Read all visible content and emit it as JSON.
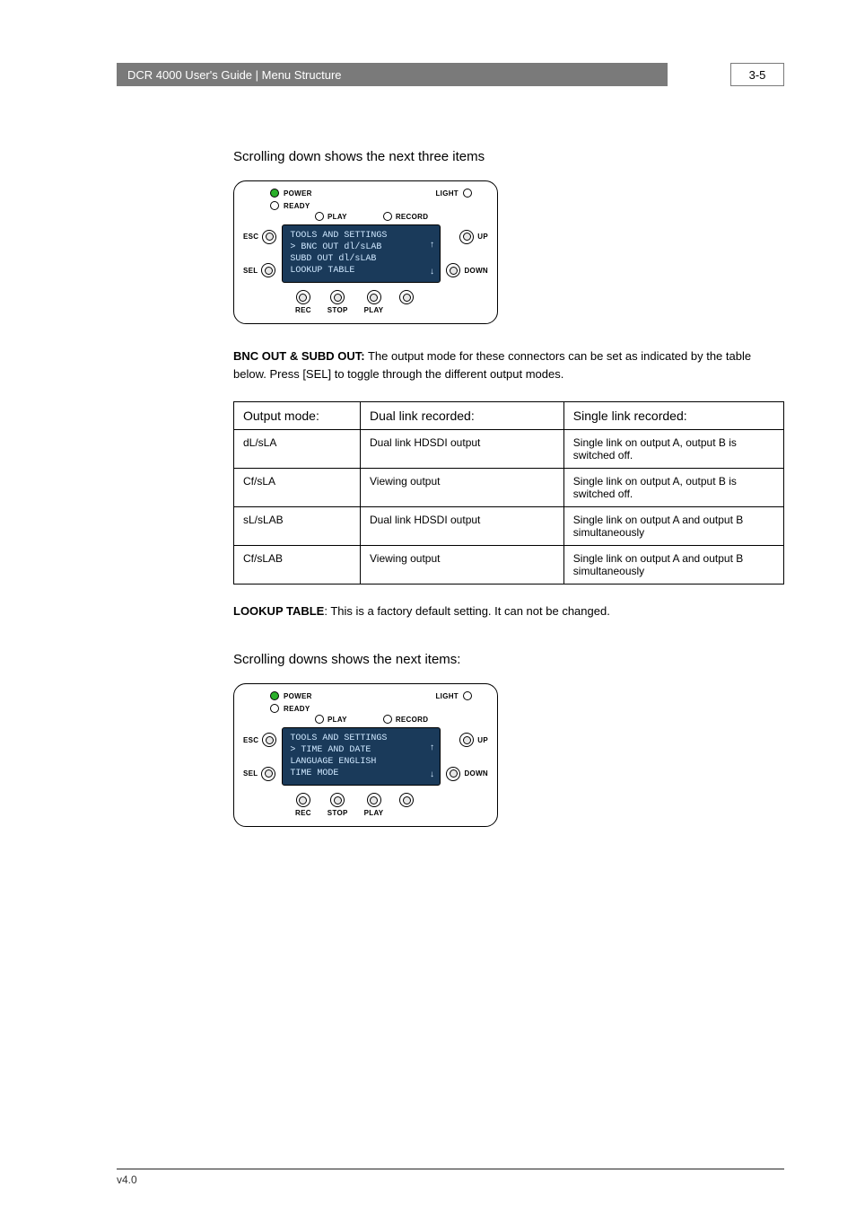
{
  "header": {
    "title": "DCR 4000 User's Guide | Menu Structure",
    "page": "3-5"
  },
  "section1": {
    "heading": "Scrolling down shows the next three items"
  },
  "panel_common": {
    "power": "POWER",
    "light": "LIGHT",
    "ready": "READY",
    "play": "PLAY",
    "record": "RECORD",
    "esc": "ESC",
    "sel": "SEL",
    "up": "UP",
    "down": "DOWN",
    "rec": "REC",
    "stop": "STOP",
    "play_btn": "PLAY",
    "colors": {
      "lcd_bg": "#1a3a5a",
      "lcd_text": "#cfe8ff",
      "led_green": "#2bb02b"
    }
  },
  "lcd1": {
    "l1": "TOOLS AND SETTINGS",
    "l2": "> BNC OUT   dl/sLAB",
    "l3": "  SUBD OUT  dl/sLAB",
    "l4": "  LOOKUP TABLE"
  },
  "bnc_para": {
    "lead": "BNC OUT & SUBD OUT:",
    "rest": " The output mode for these connectors can be set as indicated by the table below. Press [SEL] to toggle through the different output modes."
  },
  "table": {
    "head": {
      "c1": "Output mode:",
      "c2": "Dual link recorded:",
      "c3": "Single link recorded:"
    },
    "rows": [
      {
        "c1": "dL/sLA",
        "c2": "Dual link HDSDI output",
        "c3": "Single link on output A, output B is switched off."
      },
      {
        "c1": "Cf/sLA",
        "c2": "Viewing output",
        "c3": "Single link on output A, output B is switched off."
      },
      {
        "c1": "sL/sLAB",
        "c2": "Dual link HDSDI output",
        "c3": "Single link on output A and output B simultaneously"
      },
      {
        "c1": "Cf/sLAB",
        "c2": "Viewing output",
        "c3": "Single link on output A and output B simultaneously"
      }
    ]
  },
  "lookup": {
    "lead": "LOOKUP TABLE",
    "rest": ": This is a factory default setting. It can not be changed."
  },
  "section2": {
    "heading": "Scrolling downs shows the next items:"
  },
  "lcd2": {
    "l1": "TOOLS AND SETTINGS",
    "l2": "> TIME AND DATE",
    "l3": "  LANGUAGE ENGLISH",
    "l4": "  TIME MODE"
  },
  "footer": {
    "version": "v4.0"
  }
}
